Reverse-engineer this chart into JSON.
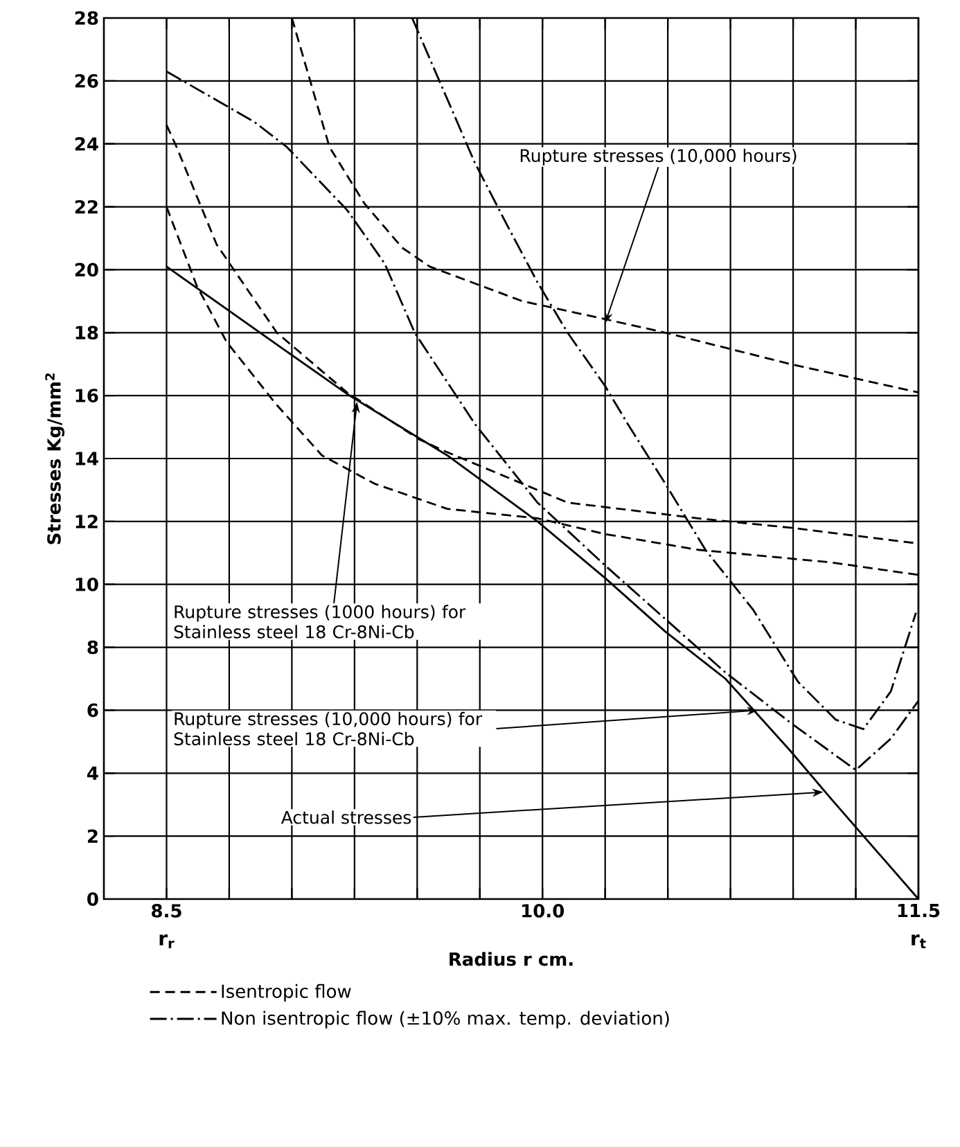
{
  "chart_data": {
    "type": "line",
    "xlabel": "Radius  r cm.",
    "ylabel": "Stresses Kg/mm$^{2}$",
    "xlim": [
      8.25,
      11.5
    ],
    "ylim": [
      0,
      28
    ],
    "xticks": [
      {
        "value": 8.5,
        "label": "8.5"
      },
      {
        "value": 8.75,
        "label": null
      },
      {
        "value": 9.0,
        "label": null
      },
      {
        "value": 9.25,
        "label": null
      },
      {
        "value": 9.5,
        "label": null
      },
      {
        "value": 9.75,
        "label": null
      },
      {
        "value": 10.0,
        "label": "10.0"
      },
      {
        "value": 10.25,
        "label": null
      },
      {
        "value": 10.5,
        "label": null
      },
      {
        "value": 10.75,
        "label": null
      },
      {
        "value": 11.0,
        "label": null
      },
      {
        "value": 11.25,
        "label": null
      },
      {
        "value": 11.5,
        "label": "11.5"
      }
    ],
    "yticks": [
      0,
      2,
      4,
      6,
      8,
      10,
      12,
      14,
      16,
      18,
      20,
      22,
      24,
      26,
      28
    ],
    "grid": true,
    "legend": "bottom",
    "series": [
      {
        "name": "Isentropic flow",
        "color": "#000000",
        "line_style": "dashed",
        "x": [
          9.0,
          9.15,
          9.29,
          9.44,
          9.55,
          9.92,
          10.21,
          10.49,
          10.99,
          11.5
        ],
        "values": [
          28.0,
          23.9,
          22.1,
          20.7,
          20.1,
          19.0,
          18.5,
          18.0,
          17.0,
          16.1
        ]
      },
      {
        "name": "Non isentropic flow (±10% max. temp. deviation)",
        "color": "#000000",
        "line_style": "dashdot",
        "x": [
          9.48,
          9.73,
          9.86,
          9.98,
          10.1,
          10.25,
          10.34,
          10.49,
          10.65,
          10.84,
          11.02,
          11.17,
          11.28,
          11.39,
          11.49
        ],
        "values": [
          28.0,
          23.4,
          21.4,
          19.6,
          18.0,
          16.3,
          15.1,
          13.2,
          11.1,
          9.2,
          6.9,
          5.7,
          5.4,
          6.6,
          9.1
        ]
      },
      {
        "color": "#000000",
        "line_style": "dashed",
        "x": [
          8.5,
          8.54,
          8.7,
          8.94,
          9.22,
          9.51,
          9.62,
          9.86,
          10.1,
          10.62,
          10.99,
          11.5
        ],
        "values": [
          24.6,
          23.9,
          20.8,
          18.0,
          16.1,
          14.6,
          14.2,
          13.4,
          12.6,
          12.1,
          11.8,
          11.3
        ]
      },
      {
        "color": "#000000",
        "line_style": "dashed",
        "x": [
          8.5,
          8.62,
          8.74,
          8.94,
          9.12,
          9.33,
          9.62,
          9.98,
          10.25,
          10.62,
          11.15,
          11.5
        ],
        "values": [
          22.0,
          19.5,
          17.7,
          15.7,
          14.1,
          13.2,
          12.4,
          12.1,
          11.6,
          11.1,
          10.7,
          10.3
        ]
      },
      {
        "color": "#000000",
        "line_style": "dashdot",
        "x": [
          8.5,
          8.85,
          8.98,
          9.22,
          9.37,
          9.49,
          9.73,
          9.98,
          10.25,
          10.49,
          10.73,
          10.99,
          11.25,
          11.39,
          11.5
        ],
        "values": [
          26.3,
          24.7,
          23.9,
          21.9,
          20.2,
          18.0,
          15.1,
          12.6,
          10.6,
          8.9,
          7.2,
          5.6,
          4.1,
          5.1,
          6.3
        ]
      },
      {
        "color": "#000000",
        "line_style": "solid",
        "x": [
          8.5,
          8.98,
          9.23,
          9.62,
          9.98,
          10.25,
          10.49,
          10.73,
          10.99,
          11.15,
          11.5
        ],
        "values": [
          20.1,
          17.4,
          16.0,
          14.1,
          12.0,
          10.2,
          8.5,
          7.0,
          4.7,
          3.2,
          0
        ]
      }
    ],
    "annotations": [
      {
        "text": "Rupture stresses (10,000 hours)",
        "x": 10.25,
        "y": 18.3
      },
      {
        "text": "Rupture stresses (1000 hours) for Stainless steel 18 Cr-8Ni-Cb",
        "x": 9.26,
        "y": 15.8
      },
      {
        "text": "Rupture stresses (10,000 hours) for Stainless steel 18 Cr-8Ni-Cb",
        "x": 10.86,
        "y": 6.0
      },
      {
        "text": "Actual stresses",
        "x": 11.12,
        "y": 3.4
      },
      "r$_{r}$",
      "r$_{t}$"
    ]
  }
}
